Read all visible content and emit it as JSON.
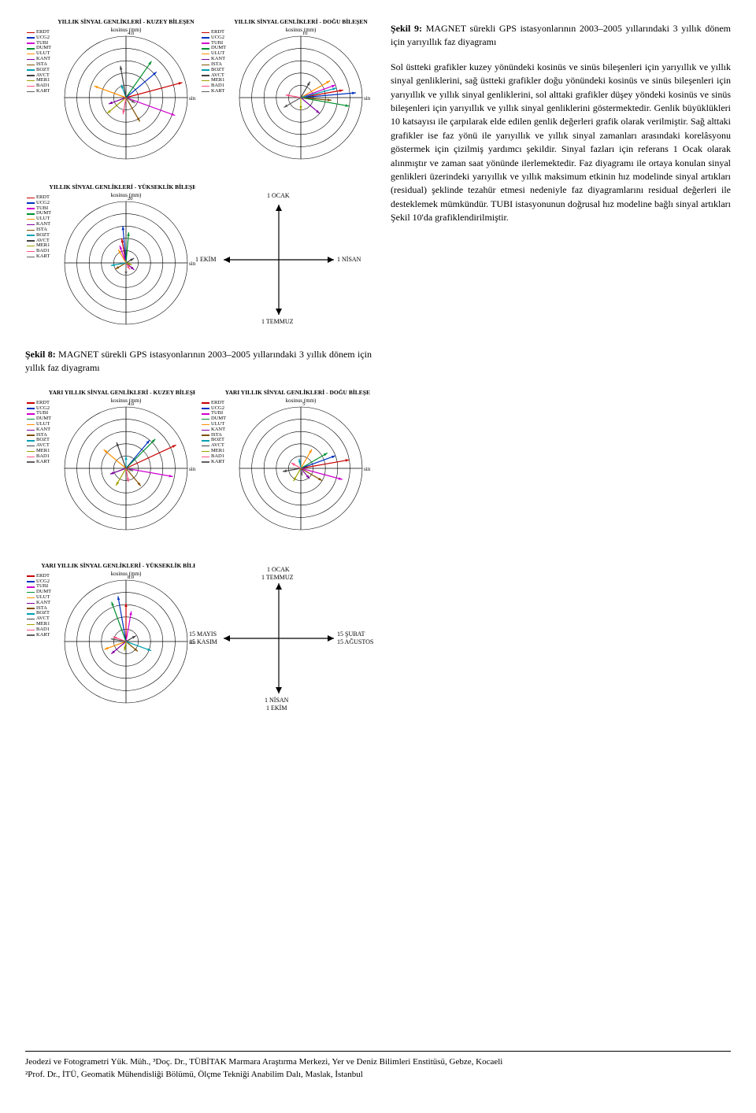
{
  "stations": [
    {
      "name": "ERDT",
      "color": "#c90000"
    },
    {
      "name": "UCG2",
      "color": "#0030c0"
    },
    {
      "name": "TUBI",
      "color": "#d000d0"
    },
    {
      "name": "DUMT",
      "color": "#009030"
    },
    {
      "name": "ULUT",
      "color": "#ff9000"
    },
    {
      "name": "KANT",
      "color": "#8000a0"
    },
    {
      "name": "ISTA",
      "color": "#805000"
    },
    {
      "name": "BOZT",
      "color": "#00a0b0"
    },
    {
      "name": "AVCT",
      "color": "#404040"
    },
    {
      "name": "MER1",
      "color": "#a0a000"
    },
    {
      "name": "BAD1",
      "color": "#ff5080"
    },
    {
      "name": "KART",
      "color": "#606060"
    }
  ],
  "phase_plots": [
    {
      "title": "YILLIK SİNYAL GENLİKLERİ - KUZEY BİLEŞEN",
      "xlabel": "kosinus (mm)",
      "ylabel": "sinus (mm)",
      "radii": [
        0.8,
        1.6,
        2.4,
        3.2,
        4.0
      ],
      "radii_labels": [
        "",
        "",
        "",
        "",
        "4.0"
      ],
      "vectors": [
        [
          3.8,
          15
        ],
        [
          2.6,
          40
        ],
        [
          3.4,
          -20
        ],
        [
          2.9,
          55
        ],
        [
          2.2,
          160
        ],
        [
          1.2,
          200
        ],
        [
          1.8,
          -60
        ],
        [
          0.9,
          110
        ],
        [
          2.1,
          100
        ],
        [
          1.6,
          -140
        ],
        [
          1.1,
          -100
        ],
        [
          0.7,
          -30
        ]
      ],
      "block": "fig8",
      "pos": "tl"
    },
    {
      "title": "YILLIK SİNYAL GENLİKLERİ - DOĞU BİLEŞEN",
      "xlabel": "kosinus (mm)",
      "ylabel": "sinus (mm)",
      "radii": [
        2,
        4,
        6,
        8,
        10
      ],
      "radii_labels": [
        "",
        "",
        "",
        "",
        "10"
      ],
      "vectors": [
        [
          7,
          10
        ],
        [
          9,
          5
        ],
        [
          6,
          20
        ],
        [
          8,
          -10
        ],
        [
          5.5,
          30
        ],
        [
          4,
          -40
        ],
        [
          5,
          -5
        ],
        [
          6,
          15
        ],
        [
          3,
          60
        ],
        [
          2,
          -90
        ],
        [
          2.5,
          170
        ],
        [
          3.2,
          -150
        ]
      ],
      "block": "fig8",
      "pos": "tr"
    },
    {
      "title": "YILLIK SİNYAL GENLİKLERİ - YÜKSEKLİK BİLEŞENİ",
      "xlabel": "kosinus (mm)",
      "ylabel": "sinus (mm)",
      "radii": [
        4,
        8,
        12,
        16,
        20
      ],
      "radii_labels": [
        "",
        "",
        "",
        "",
        "20"
      ],
      "vectors": [
        [
          8,
          100
        ],
        [
          12,
          95
        ],
        [
          6,
          110
        ],
        [
          10,
          85
        ],
        [
          5,
          120
        ],
        [
          3.5,
          -40
        ],
        [
          4,
          -150
        ],
        [
          5,
          -170
        ],
        [
          3,
          30
        ],
        [
          2,
          -20
        ],
        [
          2.5,
          -60
        ],
        [
          4,
          -90
        ]
      ],
      "block": "fig8",
      "pos": "bl"
    },
    {
      "title": "YARI YILLIK SİNYAL GENLİKLERİ - KUZEY BİLEŞENİ",
      "xlabel": "kosinus (mm)",
      "ylabel": "sinus (mm)",
      "radii": [
        0.8,
        1.6,
        2.4,
        3.2,
        4.0
      ],
      "radii_labels": [
        "",
        "",
        "",
        "",
        "4.0"
      ],
      "vectors": [
        [
          3.6,
          25
        ],
        [
          2.4,
          50
        ],
        [
          3.1,
          -10
        ],
        [
          2.7,
          45
        ],
        [
          1.9,
          140
        ],
        [
          1.1,
          -160
        ],
        [
          1.5,
          -50
        ],
        [
          0.8,
          90
        ],
        [
          1.8,
          110
        ],
        [
          1.3,
          -120
        ],
        [
          0.9,
          -80
        ],
        [
          0.5,
          -20
        ]
      ],
      "block": "fig9",
      "pos": "tl"
    },
    {
      "title": "YARI YILLIK SİNYAL GENLİKLERİ - DOĞU BİLEŞENİ",
      "xlabel": "kosinus (mm)",
      "ylabel": "sinus (mm)",
      "radii": [
        1,
        2,
        3,
        4,
        5
      ],
      "radii_labels": [
        "",
        "",
        "",
        "",
        "5"
      ],
      "vectors": [
        [
          4,
          10
        ],
        [
          3,
          20
        ],
        [
          3.5,
          -15
        ],
        [
          2.5,
          30
        ],
        [
          1.8,
          60
        ],
        [
          1.1,
          -50
        ],
        [
          2,
          -30
        ],
        [
          0.8,
          100
        ],
        [
          1.5,
          -170
        ],
        [
          1.2,
          -120
        ],
        [
          0.9,
          150
        ],
        [
          0.6,
          -80
        ]
      ],
      "block": "fig9",
      "pos": "tr"
    },
    {
      "title": "YARI YILLIK SİNYAL GENLİKLERİ - YÜKSEKLİK BİLEŞENİ",
      "xlabel": "kosinus (mm)",
      "ylabel": "sinus (mm)",
      "radii": [
        1.6,
        3.2,
        4.8,
        6.4,
        8.0
      ],
      "radii_labels": [
        "",
        "",
        "",
        "",
        "8.0"
      ],
      "vectors": [
        [
          5,
          90
        ],
        [
          6,
          100
        ],
        [
          4,
          80
        ],
        [
          5.5,
          110
        ],
        [
          3,
          -160
        ],
        [
          2.5,
          -140
        ],
        [
          2,
          -40
        ],
        [
          3.5,
          -20
        ],
        [
          1.5,
          30
        ],
        [
          1.2,
          -100
        ],
        [
          1.8,
          160
        ],
        [
          2,
          170
        ]
      ],
      "block": "fig9",
      "pos": "bl"
    }
  ],
  "date_diagram_annual": {
    "top": "1 OCAK",
    "right": "1 NİSAN",
    "bottom": "1 TEMMUZ",
    "left": "1 EKİM"
  },
  "date_diagram_semi": {
    "top1": "1 OCAK",
    "top2": "1 TEMMUZ",
    "right1": "15 ŞUBAT",
    "right2": "15 AĞUSTOS",
    "bottom1": "1 NİSAN",
    "bottom2": "1 EKİM",
    "left1": "15 MAYIS",
    "left2": "15 KASIM"
  },
  "plot_style": {
    "bg": "#ffffff",
    "axis_color": "#000000",
    "ring_color": "#000000",
    "ring_stroke": 0.6,
    "axis_stroke": 0.8,
    "vector_stroke": 1.2,
    "title_fontsize": 7.5,
    "label_fontsize": 7,
    "tick_fontsize": 6.5,
    "arrow_stroke": 1.2,
    "arrow_color": "#000000"
  },
  "captions": {
    "fig8_lead": "Şekil 8:",
    "fig8_body": " MAGNET sürekli GPS istasyonlarının 2003–2005 yıllarındaki 3 yıllık dönem için yıllık faz diyagramı",
    "fig9_lead": "Şekil 9:",
    "fig9_body": " MAGNET sürekli GPS istasyonlarının 2003–2005 yıllarındaki 3 yıllık dönem için yarıyıllık faz diyagramı"
  },
  "body_paragraph": "Sol üstteki grafikler kuzey yönündeki kosinüs ve sinüs bileşenleri için yarıyıllık ve yıllık sinyal genliklerini, sağ üstteki grafikler doğu yönündeki kosinüs ve sinüs bileşenleri için yarıyıllık ve yıllık sinyal genliklerini, sol alttaki grafikler düşey yöndeki kosinüs ve sinüs bileşenleri için yarıyıllık ve yıllık sinyal genliklerini göstermektedir. Genlik büyüklükleri 10 katsayısı ile çarpılarak elde edilen genlik değerleri grafik olarak verilmiştir. Sağ alttaki grafikler ise faz yönü ile yarıyıllık ve yıllık sinyal zamanları arasındaki korelâsyonu göstermek için çizilmiş yardımcı şekildir. Sinyal fazları için referans 1 Ocak olarak alınmıştır ve zaman saat yönünde ilerlemektedir. Faz diyagramı ile ortaya konulan sinyal genlikleri üzerindeki yarıyıllık ve yıllık maksimum etkinin hız modelinde sinyal artıkları (residual) şeklinde tezahür etmesi nedeniyle faz diyagramlarını residual değerleri ile desteklemek mümkündür. TUBI istasyonunun doğrusal hız modeline bağlı sinyal artıkları Şekil 10'da grafiklendirilmiştir.",
  "footer": {
    "line1": "Jeodezi ve Fotogrametri Yük. Müh., ³Doç. Dr., TÜBİTAK Marmara Araştırma Merkezi, Yer ve Deniz Bilimleri Enstitüsü, Gebze, Kocaeli",
    "line2": "²Prof. Dr., İTÜ, Geomatik Mühendisliği Bölümü, Ölçme Tekniği Anabilim Dalı, Maslak, İstanbul"
  }
}
